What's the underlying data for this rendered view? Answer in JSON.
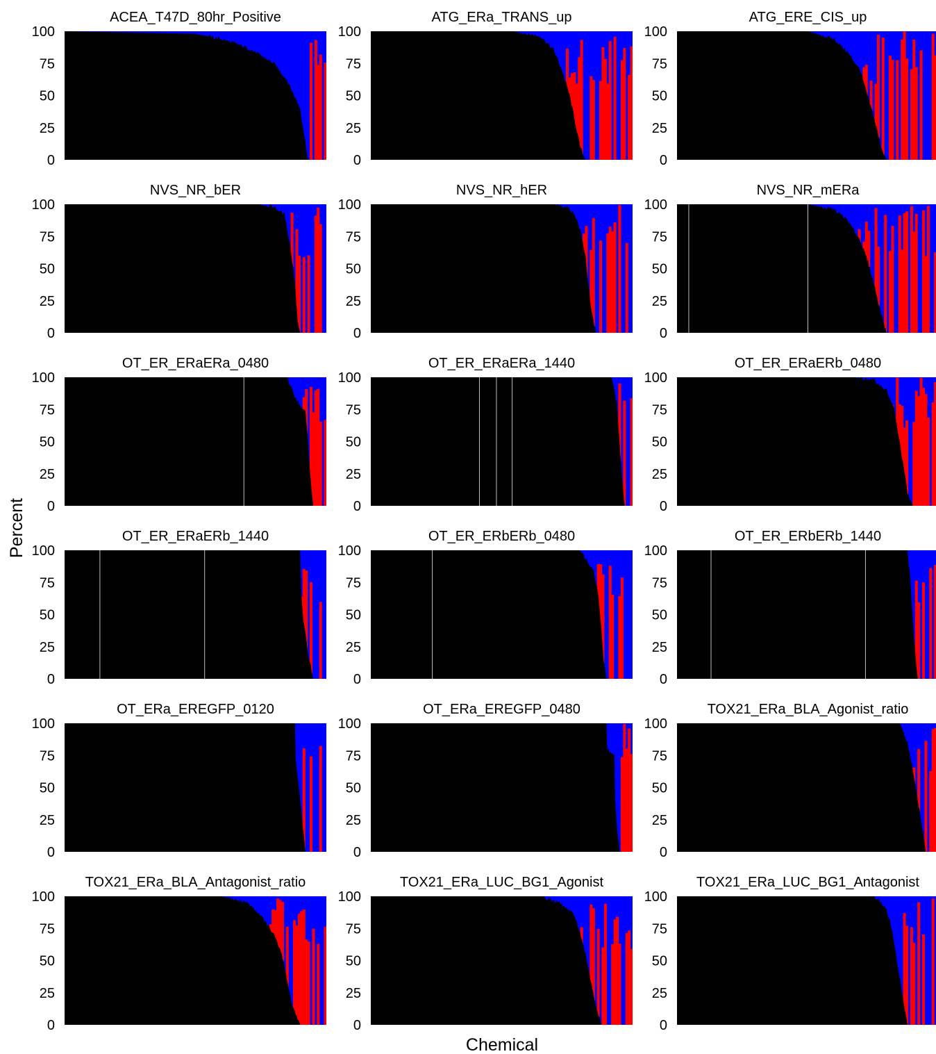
{
  "figure": {
    "xlabel": "Chemical",
    "ylabel": "Percent",
    "colors": {
      "primary": "#000000",
      "secondary": "#ff0000",
      "tertiary": "#0000ff",
      "separator": "#ffffff"
    }
  },
  "chart_data": [
    {
      "type": "area",
      "title": "ACEA_T47D_80hr_Positive",
      "ylim": [
        0,
        100
      ],
      "yticks": [
        0,
        25,
        50,
        75,
        100
      ],
      "x": [
        0,
        0.5,
        0.6,
        0.7,
        0.8,
        0.85,
        0.9,
        0.93,
        0.96,
        1
      ],
      "values": [
        100,
        98,
        94,
        87,
        75,
        62,
        40,
        0,
        0,
        0
      ],
      "redFrom": 0.91,
      "blueEnd": 1,
      "white": []
    },
    {
      "type": "area",
      "title": "ATG_ERa_TRANS_up",
      "ylim": [
        0,
        100
      ],
      "yticks": [
        0,
        25,
        50,
        75,
        100
      ],
      "x": [
        0,
        0.55,
        0.65,
        0.7,
        0.73,
        0.76,
        0.78,
        0.8,
        0.82,
        1
      ],
      "values": [
        100,
        100,
        96,
        85,
        70,
        50,
        30,
        10,
        0,
        0
      ],
      "redFrom": 0.72,
      "blueEnd": 1,
      "white": []
    },
    {
      "type": "area",
      "title": "ATG_ERE_CIS_up",
      "ylim": [
        0,
        100
      ],
      "yticks": [
        0,
        25,
        50,
        75,
        100
      ],
      "x": [
        0,
        0.5,
        0.6,
        0.65,
        0.7,
        0.72,
        0.75,
        0.78,
        0.8,
        1
      ],
      "values": [
        100,
        100,
        94,
        84,
        70,
        55,
        35,
        10,
        0,
        0
      ],
      "redFrom": 0.7,
      "blueEnd": 1,
      "white": []
    },
    {
      "type": "area",
      "title": "NVS_NR_bER",
      "ylim": [
        0,
        100
      ],
      "yticks": [
        0,
        25,
        50,
        75,
        100
      ],
      "x": [
        0,
        0.75,
        0.8,
        0.84,
        0.86,
        0.88,
        0.89,
        0.9,
        1
      ],
      "values": [
        100,
        100,
        98,
        92,
        70,
        40,
        10,
        0,
        0
      ],
      "redFrom": 0.86,
      "blueEnd": 1,
      "white": []
    },
    {
      "type": "area",
      "title": "NVS_NR_hER",
      "ylim": [
        0,
        100
      ],
      "yticks": [
        0,
        25,
        50,
        75,
        100
      ],
      "x": [
        0,
        0.7,
        0.75,
        0.78,
        0.8,
        0.82,
        0.83,
        0.84,
        0.86,
        1
      ],
      "values": [
        100,
        100,
        98,
        92,
        80,
        60,
        40,
        20,
        0,
        0
      ],
      "redFrom": 0.8,
      "blueEnd": 1,
      "white": []
    },
    {
      "type": "area",
      "title": "NVS_NR_mERa",
      "ylim": [
        0,
        100
      ],
      "yticks": [
        0,
        25,
        50,
        75,
        100
      ],
      "x": [
        0,
        0.5,
        0.6,
        0.65,
        0.7,
        0.73,
        0.75,
        0.78,
        0.8,
        1
      ],
      "values": [
        100,
        100,
        96,
        88,
        72,
        55,
        40,
        15,
        0,
        0
      ],
      "redFrom": 0.68,
      "blueEnd": 1,
      "white": [
        0.045,
        0.5
      ]
    },
    {
      "type": "area",
      "title": "OT_ER_ERaERa_0480",
      "ylim": [
        0,
        100
      ],
      "yticks": [
        0,
        25,
        50,
        75,
        100
      ],
      "x": [
        0,
        0.85,
        0.88,
        0.9,
        0.92,
        0.93,
        0.94,
        0.95,
        1
      ],
      "values": [
        100,
        100,
        85,
        78,
        73,
        50,
        20,
        0,
        0
      ],
      "redFrom": 0.9,
      "blueEnd": 1,
      "white": [
        0.685
      ]
    },
    {
      "type": "area",
      "title": "OT_ER_ERaERa_1440",
      "ylim": [
        0,
        100
      ],
      "yticks": [
        0,
        25,
        50,
        75,
        100
      ],
      "x": [
        0,
        0.92,
        0.94,
        0.95,
        0.96,
        0.97,
        1
      ],
      "values": [
        100,
        100,
        80,
        50,
        20,
        0,
        0
      ],
      "redFrom": 0.93,
      "blueEnd": 1,
      "white": [
        0.415,
        0.48,
        0.54
      ]
    },
    {
      "type": "area",
      "title": "OT_ER_ERaERb_0480",
      "ylim": [
        0,
        100
      ],
      "yticks": [
        0,
        25,
        50,
        75,
        100
      ],
      "x": [
        0,
        0.68,
        0.75,
        0.8,
        0.83,
        0.85,
        0.87,
        0.88,
        0.9,
        1
      ],
      "values": [
        100,
        100,
        98,
        90,
        75,
        50,
        25,
        10,
        0,
        0
      ],
      "redFrom": 0.8,
      "blueEnd": 1,
      "white": []
    },
    {
      "type": "area",
      "title": "OT_ER_ERaERb_1440",
      "ylim": [
        0,
        100
      ],
      "yticks": [
        0,
        25,
        50,
        75,
        100
      ],
      "x": [
        0,
        0.89,
        0.9,
        0.9,
        0.91,
        0.93,
        0.95,
        1
      ],
      "values": [
        100,
        100,
        100,
        80,
        50,
        20,
        0,
        0
      ],
      "redFrom": 0.87,
      "blueEnd": 1,
      "white": [
        0.135,
        0.535
      ]
    },
    {
      "type": "area",
      "title": "OT_ER_ERbERb_0480",
      "ylim": [
        0,
        100
      ],
      "yticks": [
        0,
        25,
        50,
        75,
        100
      ],
      "x": [
        0,
        0.8,
        0.85,
        0.87,
        0.88,
        0.89,
        0.9,
        1
      ],
      "values": [
        100,
        100,
        85,
        65,
        40,
        15,
        0,
        0
      ],
      "redFrom": 0.84,
      "blueEnd": 1,
      "white": [
        0.235
      ]
    },
    {
      "type": "area",
      "title": "OT_ER_ERbERb_1440",
      "ylim": [
        0,
        100
      ],
      "yticks": [
        0,
        25,
        50,
        75,
        100
      ],
      "x": [
        0,
        0.88,
        0.89,
        0.9,
        0.91,
        0.92,
        1
      ],
      "values": [
        100,
        100,
        80,
        50,
        20,
        0,
        0
      ],
      "redFrom": 0.88,
      "blueEnd": 1,
      "white": [
        0.13,
        0.72
      ]
    },
    {
      "type": "area",
      "title": "OT_ERa_EREGFP_0120",
      "ylim": [
        0,
        100
      ],
      "yticks": [
        0,
        25,
        50,
        75,
        100
      ],
      "x": [
        0,
        0.88,
        0.88,
        0.89,
        0.9,
        0.91,
        0.92,
        1
      ],
      "values": [
        100,
        100,
        75,
        60,
        40,
        20,
        0,
        0
      ],
      "redFrom": 0.89,
      "blueEnd": 1,
      "white": []
    },
    {
      "type": "area",
      "title": "OT_ERa_EREGFP_0480",
      "ylim": [
        0,
        100
      ],
      "yticks": [
        0,
        25,
        50,
        75,
        100
      ],
      "x": [
        0,
        0.9,
        0.9,
        0.93,
        0.93,
        0.94,
        0.95,
        1
      ],
      "values": [
        100,
        100,
        80,
        75,
        50,
        20,
        0,
        0
      ],
      "redFrom": 0.93,
      "blueEnd": 1,
      "white": []
    },
    {
      "type": "area",
      "title": "TOX21_ERa_BLA_Agonist_ratio",
      "ylim": [
        0,
        100
      ],
      "yticks": [
        0,
        25,
        50,
        75,
        100
      ],
      "x": [
        0,
        0.85,
        0.88,
        0.9,
        0.92,
        0.94,
        0.95,
        1
      ],
      "values": [
        100,
        100,
        85,
        65,
        40,
        15,
        0,
        0
      ],
      "redFrom": 0.9,
      "blueEnd": 1,
      "white": []
    },
    {
      "type": "area",
      "title": "TOX21_ERa_BLA_Antagonist_ratio",
      "ylim": [
        0,
        100
      ],
      "yticks": [
        0,
        25,
        50,
        75,
        100
      ],
      "x": [
        0,
        0.6,
        0.7,
        0.75,
        0.8,
        0.83,
        0.85,
        0.87,
        0.9,
        1
      ],
      "values": [
        100,
        100,
        95,
        85,
        70,
        55,
        35,
        15,
        0,
        0
      ],
      "redFrom": 0.77,
      "blueEnd": 1,
      "white": []
    },
    {
      "type": "area",
      "title": "TOX21_ERa_LUC_BG1_Agonist",
      "ylim": [
        0,
        100
      ],
      "yticks": [
        0,
        25,
        50,
        75,
        100
      ],
      "x": [
        0,
        0.65,
        0.72,
        0.78,
        0.8,
        0.82,
        0.84,
        0.86,
        0.88,
        1
      ],
      "values": [
        100,
        100,
        95,
        85,
        70,
        55,
        35,
        15,
        0,
        0
      ],
      "redFrom": 0.78,
      "blueEnd": 1,
      "white": []
    },
    {
      "type": "area",
      "title": "TOX21_ERa_LUC_BG1_Antagonist",
      "ylim": [
        0,
        100
      ],
      "yticks": [
        0,
        25,
        50,
        75,
        100
      ],
      "x": [
        0,
        0.75,
        0.78,
        0.8,
        0.82,
        0.84,
        0.86,
        0.88,
        1
      ],
      "values": [
        100,
        100,
        95,
        90,
        75,
        50,
        25,
        0,
        0
      ],
      "redFrom": 0.85,
      "blueEnd": 1,
      "white": []
    }
  ]
}
